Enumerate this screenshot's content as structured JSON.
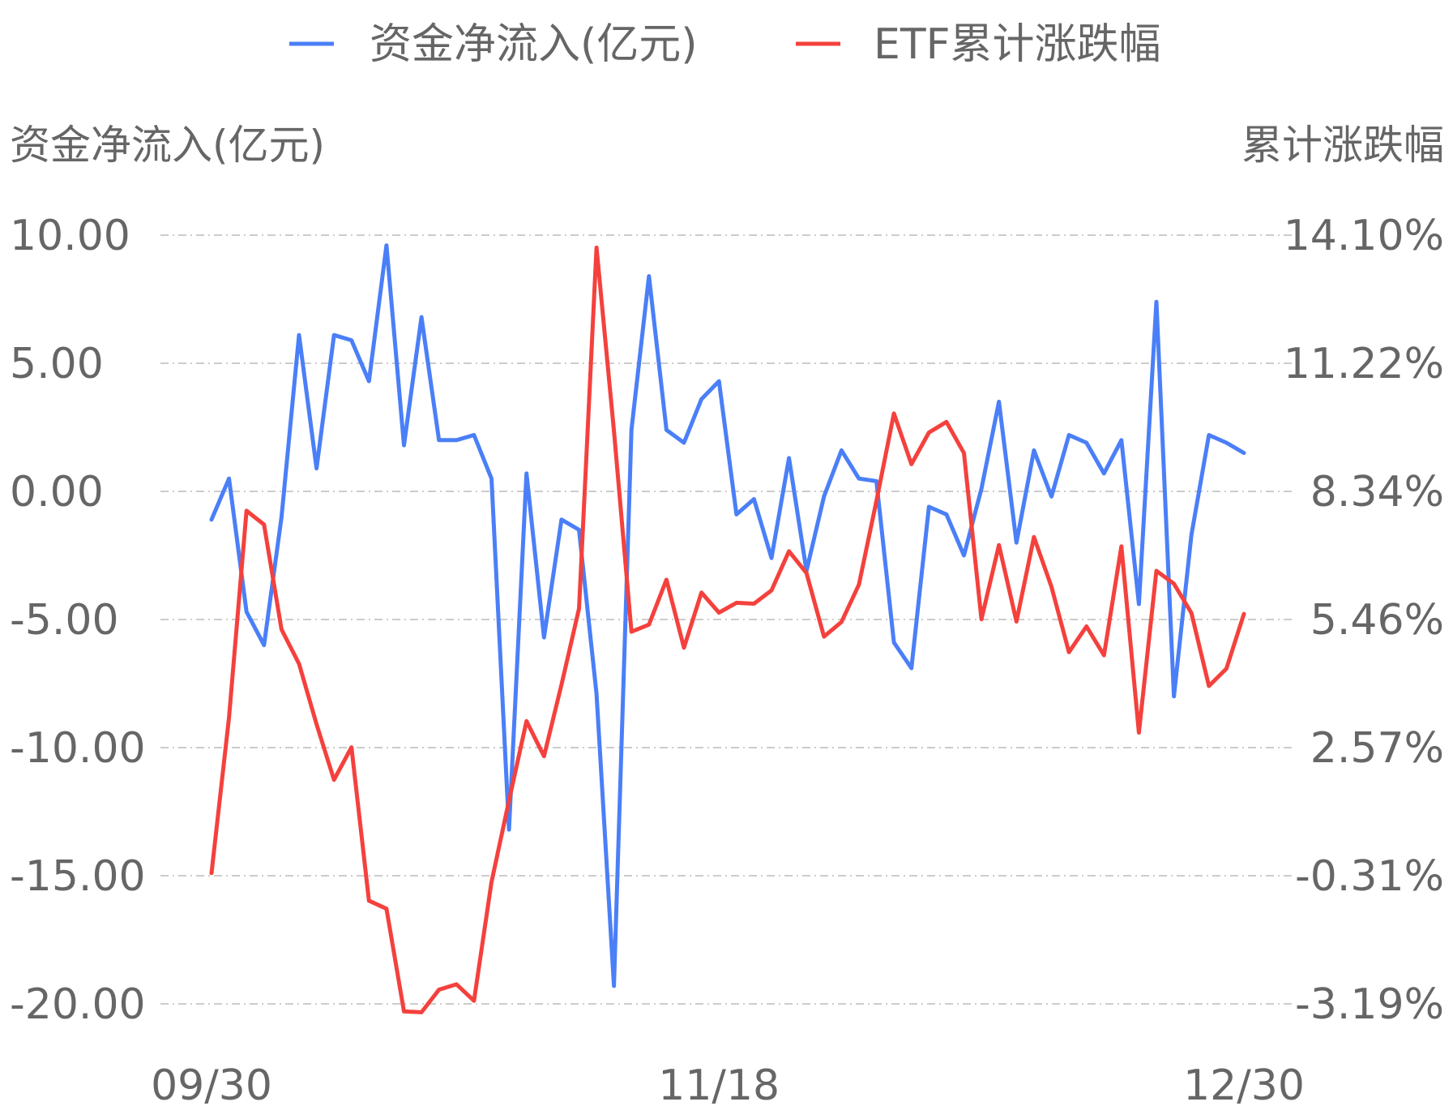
{
  "chart_data": {
    "type": "line",
    "legend": {
      "position": "top-center",
      "items": [
        {
          "name": "资金净流入(亿元)",
          "color": "#4a7ff7"
        },
        {
          "name": "ETF累计涨跌幅",
          "color": "#f4413d"
        }
      ]
    },
    "y_left": {
      "title": "资金净流入(亿元)",
      "ticks": [
        "10.00",
        "5.00",
        "0.00",
        "-5.00",
        "-10.00",
        "-15.00",
        "-20.00"
      ],
      "range": [
        -20,
        10
      ]
    },
    "y_right": {
      "title": "累计涨跌幅",
      "ticks": [
        "14.10%",
        "11.22%",
        "8.34%",
        "5.46%",
        "2.57%",
        "-0.31%",
        "-3.19%"
      ],
      "range": [
        -3.19,
        14.1
      ]
    },
    "x_ticks": [
      {
        "label": "09/30",
        "index": 0
      },
      {
        "label": "11/18",
        "index": 29
      },
      {
        "label": "12/30",
        "index": 59
      }
    ],
    "grid": true,
    "series": [
      {
        "name": "资金净流入(亿元)",
        "axis": "left",
        "color": "#4a7ff7",
        "values": [
          -1.1,
          0.5,
          -4.7,
          -6.0,
          -1.0,
          6.1,
          0.9,
          6.1,
          5.9,
          4.3,
          9.6,
          1.8,
          6.8,
          2.0,
          2.0,
          2.2,
          0.5,
          -13.2,
          0.7,
          -5.7,
          -1.1,
          -1.5,
          -7.9,
          -19.3,
          2.4,
          8.4,
          2.4,
          1.9,
          3.6,
          4.3,
          -0.9,
          -0.3,
          -2.6,
          1.3,
          -3.1,
          -0.2,
          1.6,
          0.5,
          0.4,
          -5.9,
          -6.9,
          -0.6,
          -0.9,
          -2.5,
          0.1,
          3.5,
          -2.0,
          1.6,
          -0.2,
          2.2,
          1.9,
          0.7,
          2.0,
          -4.4,
          7.4,
          -8.0,
          -1.7,
          2.2,
          1.9,
          1.5
        ]
      },
      {
        "name": "ETF累计涨跌幅",
        "axis": "right",
        "color": "#f4413d",
        "values": [
          -0.25,
          3.25,
          7.9,
          7.59,
          5.23,
          4.46,
          3.1,
          1.85,
          2.58,
          -0.87,
          -1.05,
          -3.36,
          -3.38,
          -2.87,
          -2.75,
          -3.12,
          -0.45,
          1.38,
          3.17,
          2.38,
          3.99,
          5.7,
          13.82,
          9.7,
          5.18,
          5.34,
          6.35,
          4.82,
          6.06,
          5.61,
          5.83,
          5.81,
          6.11,
          6.99,
          6.5,
          5.07,
          5.4,
          6.24,
          8.12,
          10.09,
          8.95,
          9.66,
          9.9,
          9.2,
          5.46,
          7.13,
          5.41,
          7.31,
          6.19,
          4.72,
          5.3,
          4.65,
          7.1,
          2.91,
          6.55,
          6.26,
          5.6,
          3.96,
          4.35,
          5.58
        ]
      }
    ]
  }
}
